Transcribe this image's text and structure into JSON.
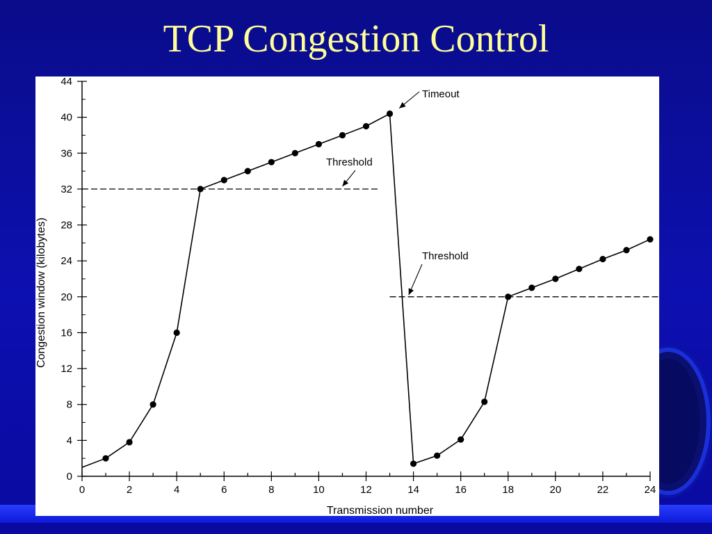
{
  "slide": {
    "title": "TCP Congestion Control"
  },
  "colors": {
    "background": "#0d10b0",
    "title": "#ffff99",
    "chart_background": "#ffffff"
  },
  "chart_data": {
    "type": "line",
    "title": "",
    "xlabel": "Transmission number",
    "ylabel": "Congestion window (kilobytes)",
    "xlim": [
      0,
      24
    ],
    "ylim": [
      0,
      44
    ],
    "x_ticks": [
      0,
      2,
      4,
      6,
      8,
      10,
      12,
      14,
      16,
      18,
      20,
      22,
      24
    ],
    "y_ticks": [
      0,
      4,
      8,
      12,
      16,
      20,
      24,
      28,
      32,
      36,
      40,
      44
    ],
    "grid": false,
    "series": [
      {
        "name": "",
        "points": [
          [
            0,
            1
          ],
          [
            1,
            2
          ],
          [
            2,
            3.8
          ],
          [
            3,
            8
          ],
          [
            4,
            16
          ],
          [
            5,
            32
          ],
          [
            6,
            33
          ],
          [
            7,
            34
          ],
          [
            8,
            35
          ],
          [
            9,
            36
          ],
          [
            10,
            37
          ],
          [
            11,
            38
          ],
          [
            12,
            39
          ],
          [
            13,
            40.4
          ],
          [
            14,
            1.4
          ],
          [
            15,
            2.3
          ],
          [
            16,
            4.1
          ],
          [
            17,
            8.3
          ],
          [
            18,
            20
          ],
          [
            19,
            21
          ],
          [
            20,
            22
          ],
          [
            21,
            23.1
          ],
          [
            22,
            24.2
          ],
          [
            23,
            25.2
          ],
          [
            24,
            26.4
          ]
        ]
      }
    ],
    "thresholds": [
      {
        "label": "Threshold",
        "value": 32,
        "x_range": [
          0,
          12.6
        ]
      },
      {
        "label": "Threshold",
        "value": 20,
        "x_range": [
          13,
          24.4
        ]
      }
    ],
    "annotations": [
      {
        "text": "Timeout",
        "points_to": [
          13.4,
          41
        ]
      },
      {
        "text": "Threshold",
        "points_to": [
          11,
          32.3
        ]
      },
      {
        "text": "Threshold",
        "points_to": [
          13.8,
          20.2
        ]
      }
    ]
  }
}
